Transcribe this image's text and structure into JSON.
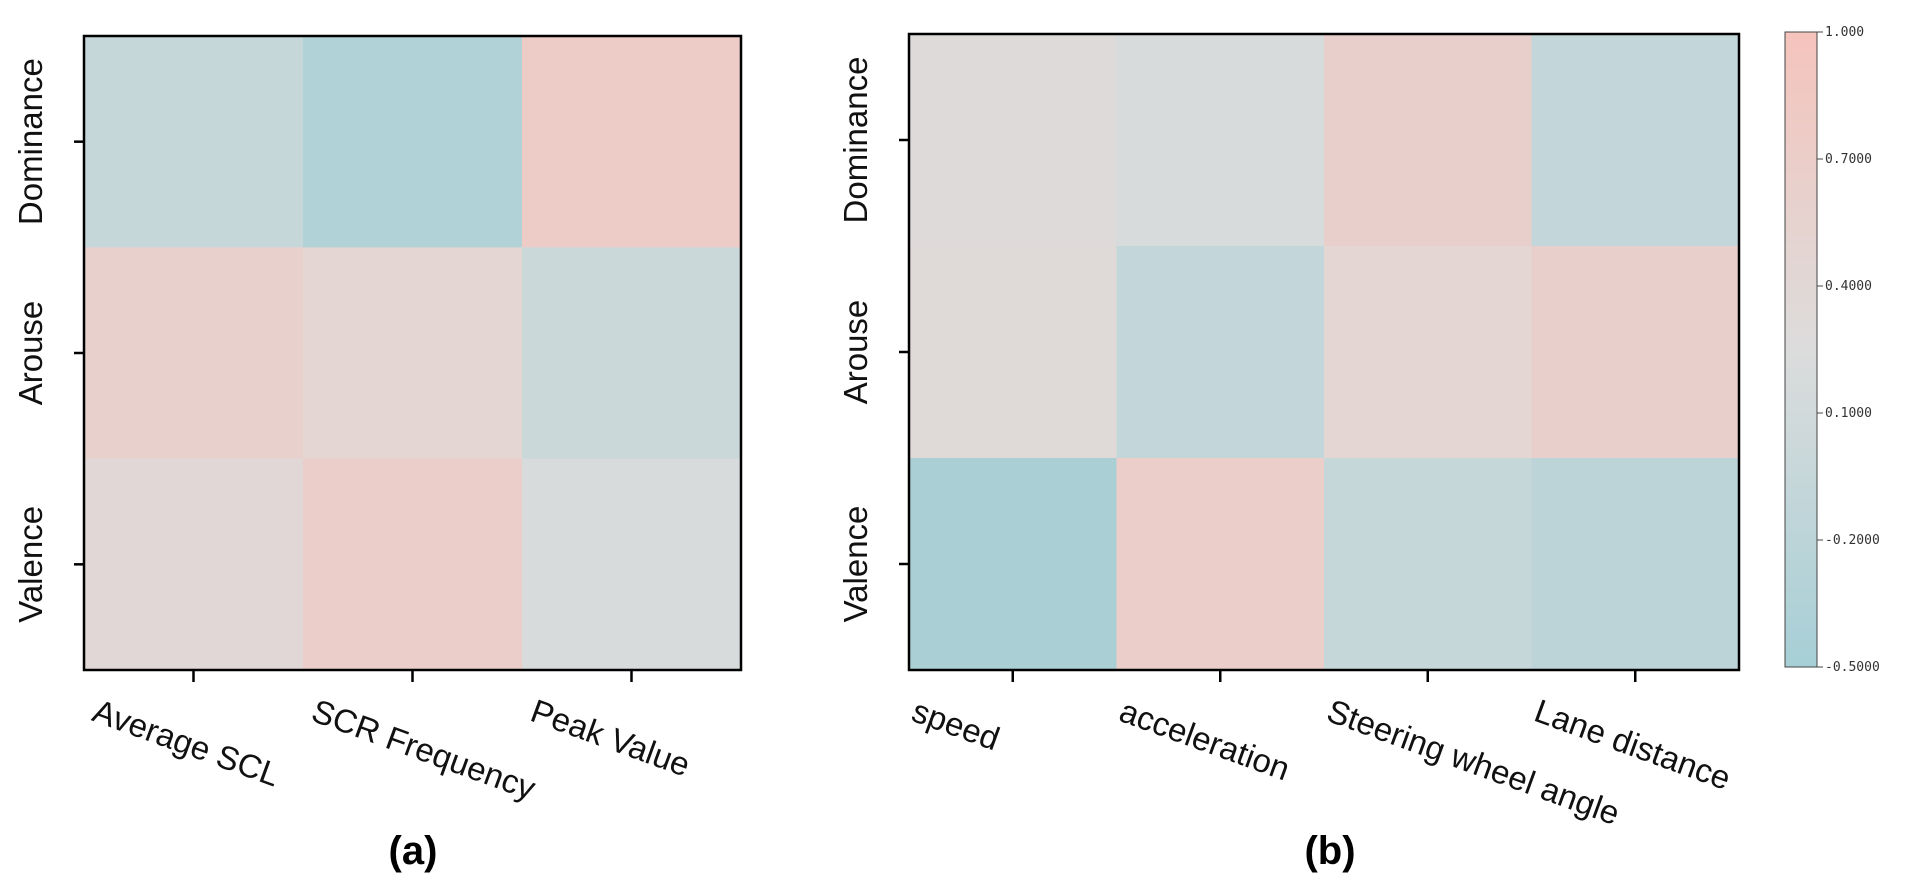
{
  "chart_data": [
    {
      "type": "heatmap",
      "panel": "(a)",
      "x_categories": [
        "Average SCL",
        "SCR Frequency",
        "Peak Value"
      ],
      "y_categories": [
        "Dominance",
        "Arouse",
        "Valence"
      ],
      "values": [
        [
          -0.05,
          -0.35,
          0.75
        ],
        [
          0.6,
          0.45,
          0.02
        ],
        [
          0.4,
          0.7,
          0.2
        ]
      ]
    },
    {
      "type": "heatmap",
      "panel": "(b)",
      "x_categories": [
        "speed",
        "acceleration",
        "Steering wheel angle",
        "Lane distance"
      ],
      "y_categories": [
        "Dominance",
        "Arouse",
        "Valence"
      ],
      "values": [
        [
          0.3,
          0.2,
          0.65,
          -0.1
        ],
        [
          0.35,
          -0.1,
          0.45,
          0.65
        ],
        [
          -0.45,
          0.7,
          -0.05,
          -0.2
        ]
      ]
    }
  ],
  "colorbar": {
    "min": -0.5,
    "max": 1.0,
    "ticks": [
      1.0,
      0.7,
      0.4,
      0.1,
      -0.2,
      -0.5
    ],
    "tick_labels": [
      "1.000",
      "0.7000",
      "0.4000",
      "0.1000",
      "-0.2000",
      "-0.5000"
    ],
    "colors": {
      "low": "#a6cfd6",
      "mid": "#dcdcdc",
      "high": "#f5c4bc"
    }
  }
}
